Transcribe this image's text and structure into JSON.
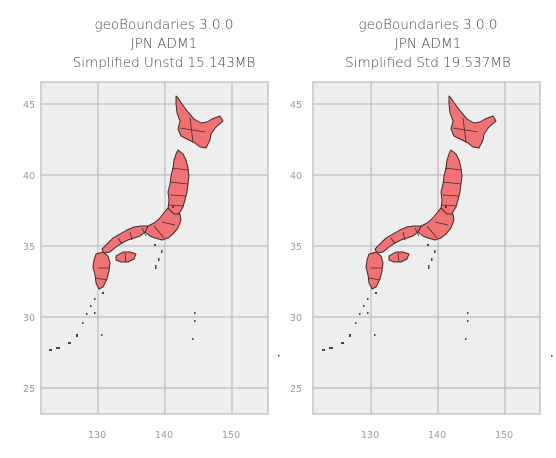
{
  "panels": [
    {
      "title_lines": [
        "geoBoundaries 3.0.0",
        "JPN ADM1",
        "Simplified Unstd 15.143MB"
      ],
      "x_ticks": [
        "130",
        "140",
        "150"
      ],
      "y_ticks": [
        "45",
        "40",
        "35",
        "30",
        "25"
      ],
      "x_range": [
        121.5,
        155.5
      ],
      "y_range": [
        22.8,
        46.8
      ]
    },
    {
      "title_lines": [
        "geoBoundaries 3.0.0",
        "JPN ADM1",
        "Simplified Std 19.537MB"
      ],
      "x_ticks": [
        "130",
        "140",
        "150"
      ],
      "y_ticks": [
        "45",
        "40",
        "35",
        "30",
        "25"
      ],
      "x_range": [
        121.5,
        155.5
      ],
      "y_range": [
        22.8,
        46.8
      ]
    }
  ],
  "colors": {
    "land_fill": "#f07272",
    "boundary": "#3d2a2a",
    "panel_bg": "#eeeeee",
    "grid": "#bdbdbd"
  }
}
